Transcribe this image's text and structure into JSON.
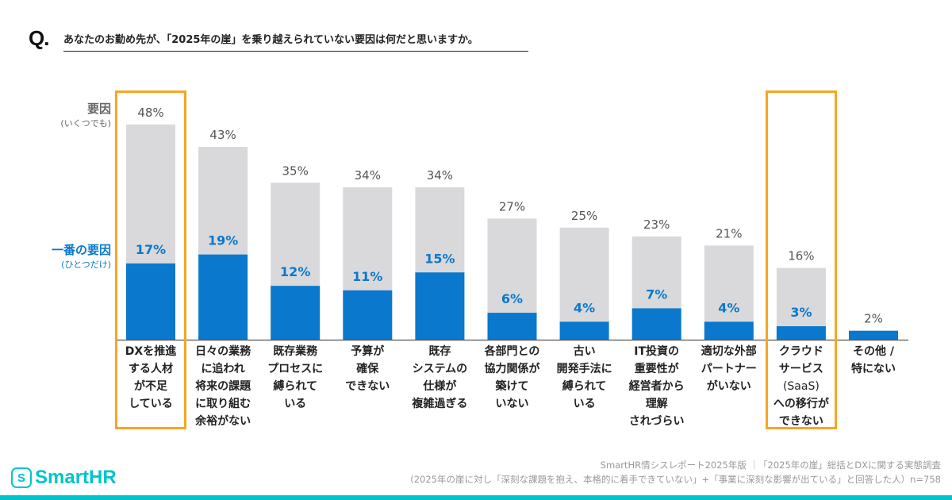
{
  "question": {
    "mark": "Q.",
    "text": "あなたのお勤め先が、「2025年の崖」を乗り越えられていない要因は何だと思いますか。"
  },
  "legend": {
    "total_label": "要因",
    "total_sub": "(いくつでも)",
    "first_label": "一番の要因",
    "first_sub": "(ひとつだけ)"
  },
  "colors": {
    "total": "#d9d9dc",
    "first": "#0a78cc",
    "highlight": "#f5a623",
    "brand": "#00c4cc"
  },
  "chart_data": {
    "type": "bar",
    "categories": [
      [
        "DXを推進",
        "する人材",
        "が不足",
        "している"
      ],
      [
        "日々の業務",
        "に追われ",
        "将来の課題",
        "に取り組む",
        "余裕がない"
      ],
      [
        "既存業務",
        "プロセスに",
        "縛られて",
        "いる"
      ],
      [
        "予算が",
        "確保",
        "できない"
      ],
      [
        "既存",
        "システムの",
        "仕様が",
        "複雑過ぎる"
      ],
      [
        "各部門との",
        "協力関係が",
        "築けて",
        "いない"
      ],
      [
        "古い",
        "開発手法に",
        "縛られて",
        "いる"
      ],
      [
        "IT投資の",
        "重要性が",
        "経営者から",
        "理解",
        "されづらい"
      ],
      [
        "適切な外部",
        "パートナー",
        "がいない"
      ],
      [
        "クラウド",
        "サービス",
        "(SaaS)",
        "への移行が",
        "できない"
      ],
      [
        "その他 /",
        "特にない"
      ]
    ],
    "series": [
      {
        "name": "要因",
        "values": [
          48,
          43,
          35,
          34,
          34,
          27,
          25,
          23,
          21,
          16,
          2
        ]
      },
      {
        "name": "一番の要因",
        "values": [
          17,
          19,
          12,
          11,
          15,
          6,
          4,
          7,
          4,
          3,
          null
        ]
      }
    ],
    "highlighted": [
      0,
      9
    ],
    "value_suffix": "%",
    "ylim": [
      0,
      50
    ]
  },
  "brand": {
    "logo": "SmartHR",
    "logo_icon": "S"
  },
  "source": {
    "line1": "SmartHR情シスレポート2025年版 ｜「2025年の崖」総括とDXに関する実態調査",
    "line2": "(2025年の崖に対し「深刻な課題を抱え、本格的に着手できていない」+「事業に深刻な影響が出ている」と回答した人）n=758"
  }
}
